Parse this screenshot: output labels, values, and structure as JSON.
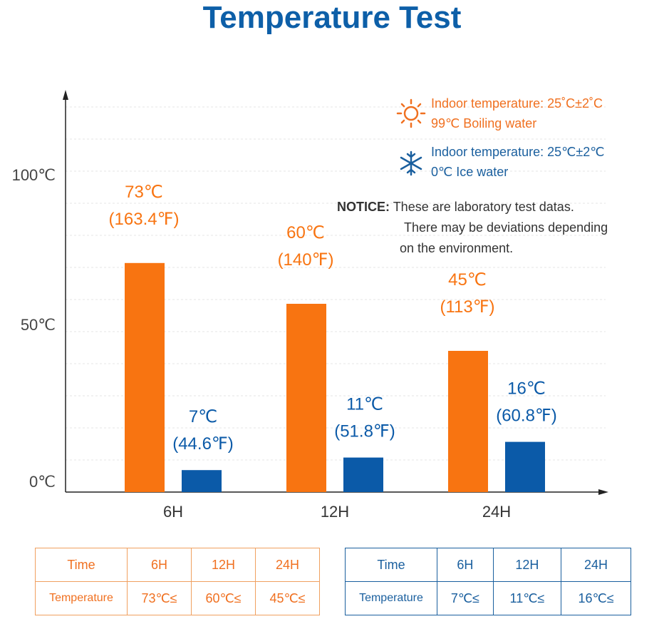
{
  "title": "Temperature Test",
  "legend": {
    "hot": {
      "line1": "Indoor temperature: 25˚C±2˚C",
      "line2": "99℃ Boiling water",
      "icon": "sun-icon"
    },
    "cold": {
      "line1": "Indoor temperature: 25℃±2℃",
      "line2": "0℃ Ice water",
      "icon": "snowflake-icon"
    }
  },
  "notice": {
    "label": "NOTICE:",
    "line1": "These are laboratory test datas.",
    "line2": "There may be deviations depending",
    "line3": "on the environment."
  },
  "chart_data": {
    "type": "bar",
    "title": "Temperature Test",
    "categories": [
      "6H",
      "12H",
      "24H"
    ],
    "yticks": [
      "0℃",
      "50℃",
      "100℃"
    ],
    "ylim": [
      0,
      120
    ],
    "series": [
      {
        "name": "Boiling water",
        "color": "#f87411",
        "values": [
          73,
          60,
          45
        ],
        "labels_c": [
          "73℃",
          "60℃",
          "45℃"
        ],
        "labels_f": [
          "(163.4℉)",
          "(140℉)",
          "(113℉)"
        ]
      },
      {
        "name": "Ice water",
        "color": "#0b5aa8",
        "values": [
          7,
          11,
          16
        ],
        "labels_c": [
          "7℃",
          "11℃",
          "16℃"
        ],
        "labels_f": [
          "(44.6℉)",
          "(51.8℉)",
          "(60.8℉)"
        ]
      }
    ]
  },
  "tables": [
    {
      "header": [
        "Time",
        "6H",
        "12H",
        "24H"
      ],
      "row": [
        "Temperature",
        "73℃≤",
        "60℃≤",
        "45℃≤"
      ]
    },
    {
      "header": [
        "Time",
        "6H",
        "12H",
        "24H"
      ],
      "row": [
        "Temperature",
        "7℃≤",
        "11℃≤",
        "16℃≤"
      ]
    }
  ]
}
